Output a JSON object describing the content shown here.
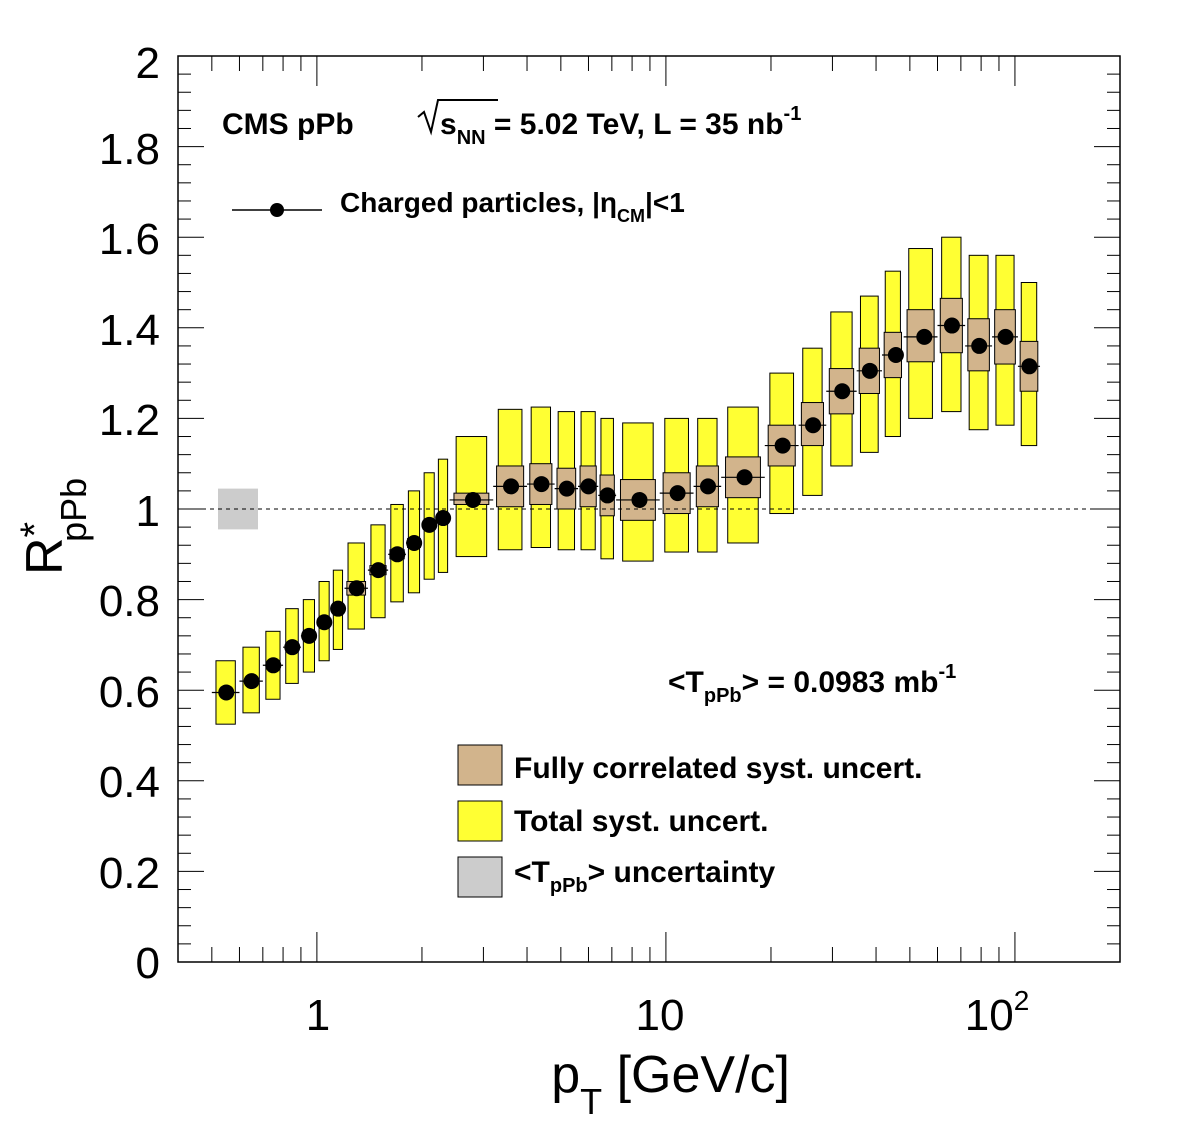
{
  "chart_data": {
    "type": "scatter",
    "x_scale": "log",
    "xlim": [
      0.4,
      200
    ],
    "ylim": [
      0,
      2
    ],
    "x_ticks": [
      {
        "value": 1,
        "label": "1"
      },
      {
        "value": 10,
        "label": "10"
      },
      {
        "value": 100,
        "label": "10",
        "sup": "2"
      }
    ],
    "y_ticks": [
      "0",
      "0.2",
      "0.4",
      "0.6",
      "0.8",
      "1",
      "1.2",
      "1.4",
      "1.6",
      "1.8",
      "2"
    ],
    "xlabel": {
      "main": "p",
      "sub": "T",
      "rest": " [GeV/c]"
    },
    "ylabel": {
      "main": "R",
      "sup": "*",
      "sub": "pPb"
    },
    "reference_line": 1,
    "texts": {
      "experiment": "CMS pPb",
      "energy_sym": "s",
      "energy_sub": "NN",
      "energy_rest": " = 5.02 TeV, L = 35 nb",
      "energy_sup": "-1",
      "taa_main": "<T",
      "taa_sub": "pPb",
      "taa_rest": "> = 0.0983 mb",
      "taa_sup": "-1"
    },
    "legend": {
      "series": {
        "main": "Charged particles, |η",
        "sub": "CM",
        "rest": "|<1"
      },
      "corr": "Fully correlated syst. uncert.",
      "total": "Total syst. uncert.",
      "taa_main": "<T",
      "taa_sub": "pPb",
      "taa_rest": "> uncertainty"
    },
    "colors": {
      "total": "#ffff33",
      "correlated": "#d2b48c",
      "taa": "#cccccc",
      "marker": "#000000"
    },
    "taa_uncertainty": 0.045,
    "series": [
      {
        "name": "Charged particles, |ηCM|<1",
        "points": [
          {
            "x": 0.55,
            "xlo": 0.5,
            "xhi": 0.6,
            "y": 0.595,
            "tot": [
              0.525,
              0.665
            ],
            "cor": [
              0.59,
              0.6
            ]
          },
          {
            "x": 0.65,
            "xlo": 0.6,
            "xhi": 0.7,
            "y": 0.62,
            "tot": [
              0.55,
              0.695
            ],
            "cor": [
              0.615,
              0.625
            ]
          },
          {
            "x": 0.75,
            "xlo": 0.7,
            "xhi": 0.8,
            "y": 0.655,
            "tot": [
              0.58,
              0.73
            ],
            "cor": [
              0.65,
              0.66
            ]
          },
          {
            "x": 0.85,
            "xlo": 0.8,
            "xhi": 0.9,
            "y": 0.695,
            "tot": [
              0.615,
              0.78
            ],
            "cor": [
              0.69,
              0.7
            ]
          },
          {
            "x": 0.95,
            "xlo": 0.9,
            "xhi": 1.0,
            "y": 0.72,
            "tot": [
              0.64,
              0.8
            ],
            "cor": [
              0.715,
              0.725
            ]
          },
          {
            "x": 1.05,
            "xlo": 1.0,
            "xhi": 1.1,
            "y": 0.75,
            "tot": [
              0.665,
              0.84
            ],
            "cor": [
              0.745,
              0.755
            ]
          },
          {
            "x": 1.15,
            "xlo": 1.1,
            "xhi": 1.2,
            "y": 0.78,
            "tot": [
              0.69,
              0.865
            ],
            "cor": [
              0.775,
              0.785
            ]
          },
          {
            "x": 1.3,
            "xlo": 1.2,
            "xhi": 1.4,
            "y": 0.825,
            "tot": [
              0.735,
              0.925
            ],
            "cor": [
              0.81,
              0.84
            ]
          },
          {
            "x": 1.5,
            "xlo": 1.4,
            "xhi": 1.6,
            "y": 0.865,
            "tot": [
              0.76,
              0.965
            ],
            "cor": [
              0.855,
              0.875
            ]
          },
          {
            "x": 1.7,
            "xlo": 1.6,
            "xhi": 1.8,
            "y": 0.9,
            "tot": [
              0.795,
              1.01
            ],
            "cor": [
              0.89,
              0.91
            ]
          },
          {
            "x": 1.9,
            "xlo": 1.8,
            "xhi": 2.0,
            "y": 0.925,
            "tot": [
              0.815,
              1.04
            ],
            "cor": [
              0.915,
              0.935
            ]
          },
          {
            "x": 2.1,
            "xlo": 2.0,
            "xhi": 2.2,
            "y": 0.965,
            "tot": [
              0.845,
              1.08
            ],
            "cor": [
              0.955,
              0.975
            ]
          },
          {
            "x": 2.3,
            "xlo": 2.2,
            "xhi": 2.4,
            "y": 0.98,
            "tot": [
              0.86,
              1.11
            ],
            "cor": [
              0.97,
              0.99
            ]
          },
          {
            "x": 2.8,
            "xlo": 2.4,
            "xhi": 3.2,
            "y": 1.02,
            "tot": [
              0.895,
              1.16
            ],
            "cor": [
              1.01,
              1.035
            ]
          },
          {
            "x": 3.6,
            "xlo": 3.2,
            "xhi": 4.0,
            "y": 1.05,
            "tot": [
              0.91,
              1.22
            ],
            "cor": [
              1.005,
              1.095
            ]
          },
          {
            "x": 4.4,
            "xlo": 4.0,
            "xhi": 4.8,
            "y": 1.055,
            "tot": [
              0.915,
              1.225
            ],
            "cor": [
              1.01,
              1.1
            ]
          },
          {
            "x": 5.2,
            "xlo": 4.8,
            "xhi": 5.6,
            "y": 1.045,
            "tot": [
              0.91,
              1.215
            ],
            "cor": [
              1.0,
              1.09
            ]
          },
          {
            "x": 6.0,
            "xlo": 5.6,
            "xhi": 6.4,
            "y": 1.05,
            "tot": [
              0.91,
              1.215
            ],
            "cor": [
              1.005,
              1.095
            ]
          },
          {
            "x": 6.8,
            "xlo": 6.4,
            "xhi": 7.2,
            "y": 1.03,
            "tot": [
              0.89,
              1.2
            ],
            "cor": [
              0.985,
              1.075
            ]
          },
          {
            "x": 8.4,
            "xlo": 7.2,
            "xhi": 9.6,
            "y": 1.02,
            "tot": [
              0.885,
              1.19
            ],
            "cor": [
              0.975,
              1.065
            ]
          },
          {
            "x": 10.8,
            "xlo": 9.6,
            "xhi": 12.0,
            "y": 1.035,
            "tot": [
              0.905,
              1.2
            ],
            "cor": [
              0.99,
              1.08
            ]
          },
          {
            "x": 13.2,
            "xlo": 12.0,
            "xhi": 14.4,
            "y": 1.05,
            "tot": [
              0.905,
              1.2
            ],
            "cor": [
              1.005,
              1.095
            ]
          },
          {
            "x": 16.8,
            "xlo": 14.4,
            "xhi": 19.2,
            "y": 1.07,
            "tot": [
              0.925,
              1.225
            ],
            "cor": [
              1.025,
              1.115
            ]
          },
          {
            "x": 21.6,
            "xlo": 19.2,
            "xhi": 24.0,
            "y": 1.14,
            "tot": [
              0.99,
              1.3
            ],
            "cor": [
              1.095,
              1.185
            ]
          },
          {
            "x": 26.4,
            "xlo": 24.0,
            "xhi": 28.8,
            "y": 1.185,
            "tot": [
              1.03,
              1.355
            ],
            "cor": [
              1.14,
              1.235
            ]
          },
          {
            "x": 32.0,
            "xlo": 28.8,
            "xhi": 35.2,
            "y": 1.26,
            "tot": [
              1.095,
              1.435
            ],
            "cor": [
              1.21,
              1.31
            ]
          },
          {
            "x": 38.4,
            "xlo": 35.2,
            "xhi": 41.6,
            "y": 1.305,
            "tot": [
              1.125,
              1.47
            ],
            "cor": [
              1.255,
              1.355
            ]
          },
          {
            "x": 45.6,
            "xlo": 41.6,
            "xhi": 48.0,
            "y": 1.34,
            "tot": [
              1.16,
              1.525
            ],
            "cor": [
              1.29,
              1.39
            ]
          },
          {
            "x": 55.0,
            "xlo": 48.0,
            "xhi": 60.0,
            "y": 1.38,
            "tot": [
              1.2,
              1.575
            ],
            "cor": [
              1.325,
              1.44
            ]
          },
          {
            "x": 66.0,
            "xlo": 60.0,
            "xhi": 72.0,
            "y": 1.405,
            "tot": [
              1.215,
              1.6
            ],
            "cor": [
              1.345,
              1.465
            ]
          },
          {
            "x": 79.0,
            "xlo": 72.0,
            "xhi": 86.0,
            "y": 1.36,
            "tot": [
              1.175,
              1.56
            ],
            "cor": [
              1.305,
              1.42
            ]
          },
          {
            "x": 94.0,
            "xlo": 86.0,
            "xhi": 102.0,
            "y": 1.38,
            "tot": [
              1.185,
              1.56
            ],
            "cor": [
              1.32,
              1.44
            ]
          },
          {
            "x": 110.0,
            "xlo": 102.0,
            "xhi": 118.0,
            "y": 1.315,
            "tot": [
              1.14,
              1.5
            ],
            "cor": [
              1.26,
              1.37
            ]
          }
        ]
      }
    ]
  }
}
